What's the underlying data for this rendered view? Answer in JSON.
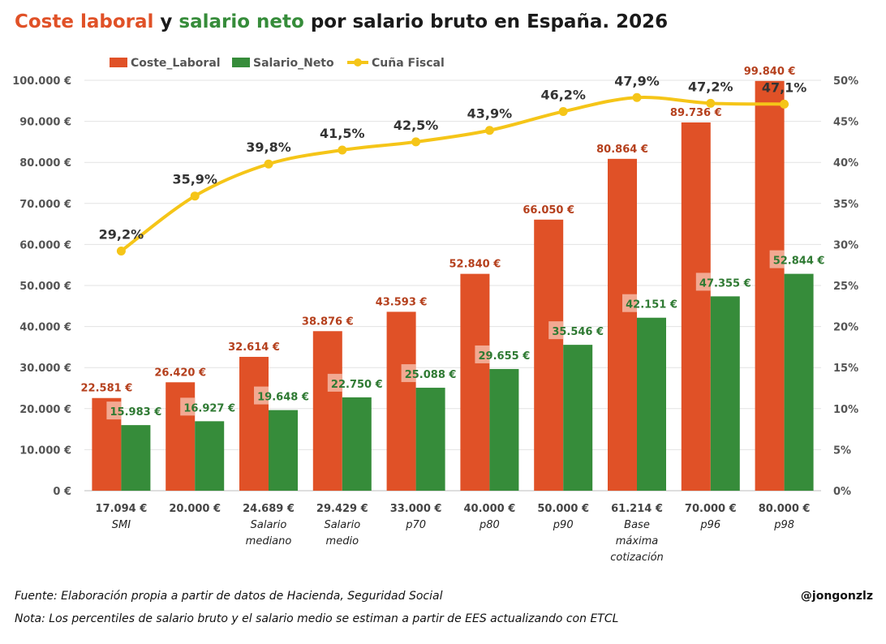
{
  "title": {
    "part1": "Coste laboral",
    "part2": " y ",
    "part3": "salario neto",
    "part4": " por salario bruto en España. 2026"
  },
  "colors": {
    "coste": "#e05127",
    "neto": "#368c3a",
    "cuna": "#f5c518",
    "title_dark": "#1a1a1a"
  },
  "footer": {
    "source": "Fuente: Elaboración propia a partir de datos de Hacienda, Seguridad Social",
    "note": "Nota: Los percentiles de salario bruto y el salario medio se estiman a partir de EES actualizando con ETCL",
    "author": "@jongonzlz"
  },
  "chart_data": {
    "type": "bar",
    "categories": [
      [
        "17.094 €",
        "SMI"
      ],
      [
        "20.000 €"
      ],
      [
        "24.689 €",
        "Salario",
        "mediano"
      ],
      [
        "29.429 €",
        "Salario",
        "medio"
      ],
      [
        "33.000 €",
        "p70"
      ],
      [
        "40.000 €",
        "p80"
      ],
      [
        "50.000 €",
        "p90"
      ],
      [
        "61.214 €",
        "Base",
        "máxima",
        "cotización"
      ],
      [
        "70.000 €",
        "p96"
      ],
      [
        "80.000 €",
        "p98"
      ]
    ],
    "series": [
      {
        "name": "Coste_Laboral",
        "type": "bar",
        "axis": "left",
        "values": [
          22581,
          26420,
          32614,
          38876,
          43593,
          52840,
          66050,
          80864,
          89736,
          99840
        ],
        "labels": [
          "22.581 €",
          "26.420 €",
          "32.614 €",
          "38.876 €",
          "43.593 €",
          "52.840 €",
          "66.050 €",
          "80.864 €",
          "89.736 €",
          "99.840 €"
        ]
      },
      {
        "name": "Salario_Neto",
        "type": "bar",
        "axis": "left",
        "values": [
          15983,
          16927,
          19648,
          22750,
          25088,
          29655,
          35546,
          42151,
          47355,
          52844
        ],
        "labels": [
          "15.983 €",
          "16.927 €",
          "19.648 €",
          "22.750 €",
          "25.088 €",
          "29.655 €",
          "35.546 €",
          "42.151 €",
          "47.355 €",
          "52.844 €"
        ]
      },
      {
        "name": "Cuña Fiscal",
        "type": "line",
        "axis": "right",
        "values": [
          29.2,
          35.9,
          39.8,
          41.5,
          42.5,
          43.9,
          46.2,
          47.9,
          47.2,
          47.1
        ],
        "labels": [
          "29,2%",
          "35,9%",
          "39,8%",
          "41,5%",
          "42,5%",
          "43,9%",
          "46,2%",
          "47,9%",
          "47,2%",
          "47,1%"
        ]
      }
    ],
    "y_left": {
      "ylim": [
        0,
        100000
      ],
      "ticks": [
        "0 €",
        "10.000 €",
        "20.000 €",
        "30.000 €",
        "40.000 €",
        "50.000 €",
        "60.000 €",
        "70.000 €",
        "80.000 €",
        "90.000 €",
        "100.000 €"
      ]
    },
    "y_right": {
      "ylim": [
        0,
        50
      ],
      "ticks": [
        "0%",
        "5%",
        "10%",
        "15%",
        "20%",
        "25%",
        "30%",
        "35%",
        "40%",
        "45%",
        "50%"
      ]
    },
    "legend": "top-left",
    "grid": true
  }
}
